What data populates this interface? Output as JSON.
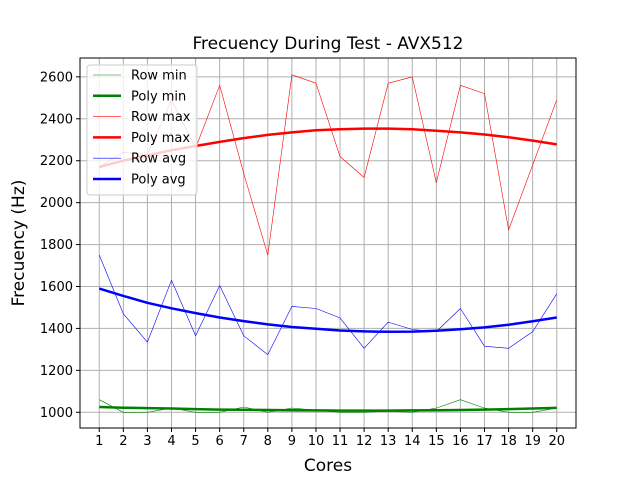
{
  "chart_data": {
    "type": "line",
    "title": "Frecuency During Test - AVX512",
    "xlabel": "Cores",
    "ylabel": "Frecuency (Hz)",
    "x": [
      1,
      2,
      3,
      4,
      5,
      6,
      7,
      8,
      9,
      10,
      11,
      12,
      13,
      14,
      15,
      16,
      17,
      18,
      19,
      20
    ],
    "xlim": [
      0.2,
      20.8
    ],
    "ylim": [
      925,
      2690
    ],
    "yticks": [
      1000,
      1200,
      1400,
      1600,
      1800,
      2000,
      2200,
      2400,
      2600
    ],
    "grid": true,
    "legend_position": "top-left",
    "series": [
      {
        "name": "Row min",
        "color": "#008000",
        "width": 0.6,
        "values": [
          1060,
          1000,
          1000,
          1020,
          1000,
          1000,
          1025,
          1000,
          1020,
          1010,
          1000,
          1000,
          1005,
          1000,
          1020,
          1060,
          1020,
          1000,
          1000,
          1020
        ]
      },
      {
        "name": "Poly min",
        "color": "#008000",
        "width": 2.5,
        "values": [
          1025,
          1022,
          1020,
          1018,
          1015,
          1013,
          1012,
          1011,
          1010,
          1009,
          1008,
          1008,
          1008,
          1009,
          1010,
          1011,
          1013,
          1015,
          1018,
          1021
        ]
      },
      {
        "name": "Row max",
        "color": "#ff0000",
        "width": 0.6,
        "values": [
          2170,
          2240,
          2230,
          2490,
          2260,
          2560,
          2140,
          1750,
          2610,
          2570,
          2220,
          2120,
          2570,
          2600,
          2095,
          2560,
          2520,
          1870,
          2180,
          2490
        ]
      },
      {
        "name": "Poly max",
        "color": "#ff0000",
        "width": 2.5,
        "values": [
          2170,
          2200,
          2225,
          2250,
          2270,
          2290,
          2308,
          2323,
          2335,
          2345,
          2350,
          2353,
          2353,
          2350,
          2343,
          2335,
          2325,
          2312,
          2296,
          2278
        ]
      },
      {
        "name": "Row avg",
        "color": "#0000ff",
        "width": 0.6,
        "values": [
          1750,
          1470,
          1335,
          1630,
          1365,
          1605,
          1365,
          1275,
          1505,
          1495,
          1450,
          1305,
          1430,
          1395,
          1385,
          1495,
          1315,
          1305,
          1385,
          1565
        ]
      },
      {
        "name": "Poly avg",
        "color": "#0000ff",
        "width": 2.5,
        "values": [
          1590,
          1555,
          1522,
          1496,
          1473,
          1452,
          1435,
          1419,
          1407,
          1398,
          1390,
          1386,
          1384,
          1385,
          1389,
          1396,
          1405,
          1418,
          1434,
          1452
        ]
      }
    ]
  }
}
